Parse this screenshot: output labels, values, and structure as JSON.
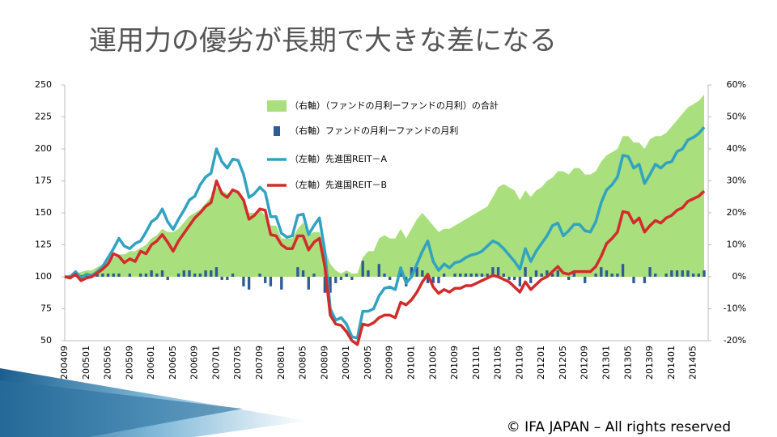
{
  "chart_data": {
    "type": "line",
    "title": "運用力の優劣が長期で大きな差になる",
    "footer": "© IFA JAPAN – All rights reserved",
    "categories": [
      "200409",
      null,
      null,
      null,
      "200501",
      null,
      null,
      null,
      "200505",
      null,
      null,
      null,
      "200509",
      null,
      null,
      null,
      "200601",
      null,
      null,
      null,
      "200605",
      null,
      null,
      null,
      "200609",
      null,
      null,
      null,
      "200701",
      null,
      null,
      null,
      "200705",
      null,
      null,
      null,
      "200709",
      null,
      null,
      null,
      "200801",
      null,
      null,
      null,
      "200805",
      null,
      null,
      null,
      "200809",
      null,
      null,
      null,
      "200901",
      null,
      null,
      null,
      "200905",
      null,
      null,
      null,
      "200909",
      null,
      null,
      null,
      "201001",
      null,
      null,
      null,
      "201005",
      null,
      null,
      null,
      "201009",
      null,
      null,
      null,
      "201101",
      null,
      null,
      null,
      "201105",
      null,
      null,
      null,
      "201109",
      null,
      null,
      null,
      "201201",
      null,
      null,
      null,
      "201205",
      null,
      null,
      null,
      "201209",
      null,
      null,
      null,
      "201301",
      null,
      null,
      null,
      "201305",
      null,
      null,
      null,
      "201309",
      null,
      null,
      null,
      "201401",
      null,
      null,
      null,
      "201405",
      null,
      null
    ],
    "ylim": [
      50,
      250
    ],
    "yticks": [
      50,
      75,
      100,
      125,
      150,
      175,
      200,
      225,
      250
    ],
    "y2lim": [
      -20,
      60
    ],
    "y2ticks": [
      {
        "value": -20,
        "label": "-20%"
      },
      {
        "value": -10,
        "label": "-10%"
      },
      {
        "value": 0,
        "label": "0%"
      },
      {
        "value": 10,
        "label": "10%"
      },
      {
        "value": 20,
        "label": "20%"
      },
      {
        "value": 30,
        "label": "30%"
      },
      {
        "value": 40,
        "label": "40%"
      },
      {
        "value": 50,
        "label": "50%"
      },
      {
        "value": 60,
        "label": "60%"
      }
    ],
    "series": [
      {
        "name": "（右軸）（ファンドの月利ーファンドの月利）の合計",
        "type": "area",
        "axis": "y2",
        "color": "#a9df7c",
        "values": [
          0,
          0.5,
          1,
          1.5,
          2,
          2,
          3,
          4,
          5,
          6,
          7,
          7,
          8,
          8,
          9,
          10,
          12,
          13,
          15,
          14,
          14,
          15,
          17,
          19,
          20,
          21,
          23,
          25,
          28,
          27,
          26,
          27,
          27,
          24,
          20,
          20,
          21,
          19,
          16,
          16,
          12,
          12,
          12,
          15,
          17,
          13,
          14,
          14,
          9,
          4,
          2,
          1,
          2,
          1,
          1,
          6,
          8,
          8,
          12,
          13,
          12,
          12,
          15,
          12,
          15,
          18,
          20,
          18,
          16,
          14,
          15,
          15,
          16,
          17,
          18,
          19,
          20,
          21,
          22,
          25,
          28,
          29,
          28,
          27,
          24,
          27,
          25,
          27,
          28,
          30,
          31,
          33,
          33,
          32,
          34,
          34,
          32,
          32,
          33,
          36,
          38,
          39,
          40,
          44,
          44,
          42,
          42,
          40,
          43,
          44,
          44,
          45,
          47,
          49,
          51,
          53,
          54,
          55,
          57
        ]
      },
      {
        "name": "（右軸）ファンドの月利ーファンドの月利",
        "type": "bar",
        "axis": "y2",
        "color": "#2f5b97",
        "values": [
          0,
          0.5,
          0.5,
          0.5,
          0.5,
          0,
          1,
          1,
          1,
          1,
          1,
          0,
          1,
          0,
          1,
          1,
          2,
          1,
          2,
          -1,
          0,
          1,
          2,
          2,
          1,
          1,
          2,
          2,
          3,
          -1,
          -1,
          1,
          0,
          -3,
          -4,
          0,
          1,
          -2,
          -3,
          0,
          -4,
          0,
          0,
          3,
          2,
          -4,
          1,
          0,
          -5,
          -5,
          -2,
          -1,
          1,
          -1,
          0,
          5,
          2,
          0,
          4,
          1,
          -1,
          0,
          3,
          -3,
          3,
          3,
          2,
          -2,
          -2,
          -2,
          1,
          0,
          1,
          1,
          1,
          1,
          1,
          1,
          1,
          3,
          3,
          1,
          -1,
          -1,
          -3,
          3,
          -2,
          2,
          1,
          2,
          1,
          2,
          0,
          -1,
          2,
          0,
          -2,
          0,
          1,
          3,
          2,
          1,
          1,
          4,
          0,
          -2,
          0,
          -2,
          3,
          1,
          0,
          1,
          2,
          2,
          2,
          2,
          1,
          1,
          2
        ]
      },
      {
        "name": "（左軸）先進国REIT－A",
        "type": "line",
        "axis": "y",
        "color": "#31a3c1",
        "values": [
          100,
          100,
          104,
          99,
          102,
          101,
          104,
          108,
          115,
          122,
          130,
          124,
          122,
          126,
          128,
          135,
          143,
          146,
          153,
          143,
          137,
          145,
          152,
          160,
          163,
          172,
          178,
          181,
          200,
          190,
          185,
          192,
          191,
          180,
          162,
          165,
          170,
          166,
          147,
          147,
          134,
          131,
          132,
          148,
          149,
          133,
          140,
          146,
          120,
          75,
          66,
          68,
          63,
          53,
          52,
          73,
          73,
          75,
          85,
          91,
          92,
          90,
          107,
          95,
          100,
          110,
          120,
          128,
          112,
          105,
          110,
          107,
          111,
          112,
          115,
          117,
          118,
          120,
          124,
          128,
          126,
          122,
          117,
          112,
          106,
          122,
          112,
          120,
          126,
          132,
          140,
          142,
          132,
          136,
          141,
          141,
          136,
          135,
          143,
          158,
          168,
          172,
          178,
          195,
          194,
          185,
          188,
          173,
          180,
          188,
          185,
          189,
          190,
          198,
          200,
          207,
          209,
          212,
          217
        ]
      },
      {
        "name": "（左軸）先進国REIT－B",
        "type": "line",
        "axis": "y",
        "color": "#d22b2b",
        "values": [
          100,
          99,
          102,
          97,
          99,
          100,
          103,
          106,
          110,
          118,
          116,
          111,
          114,
          112,
          120,
          118,
          125,
          128,
          133,
          127,
          120,
          128,
          134,
          140,
          146,
          150,
          155,
          158,
          175,
          165,
          162,
          168,
          166,
          160,
          145,
          148,
          153,
          152,
          133,
          132,
          125,
          122,
          122,
          132,
          132,
          121,
          127,
          130,
          108,
          70,
          63,
          62,
          57,
          50,
          47,
          63,
          62,
          64,
          68,
          70,
          70,
          68,
          80,
          78,
          82,
          88,
          96,
          102,
          92,
          87,
          90,
          88,
          91,
          91,
          93,
          93,
          95,
          97,
          99,
          101,
          100,
          98,
          96,
          92,
          88,
          96,
          90,
          94,
          98,
          100,
          104,
          108,
          103,
          102,
          104,
          104,
          104,
          104,
          108,
          116,
          126,
          130,
          135,
          151,
          150,
          142,
          146,
          135,
          140,
          144,
          142,
          146,
          148,
          152,
          154,
          159,
          161,
          163,
          167
        ]
      }
    ]
  }
}
